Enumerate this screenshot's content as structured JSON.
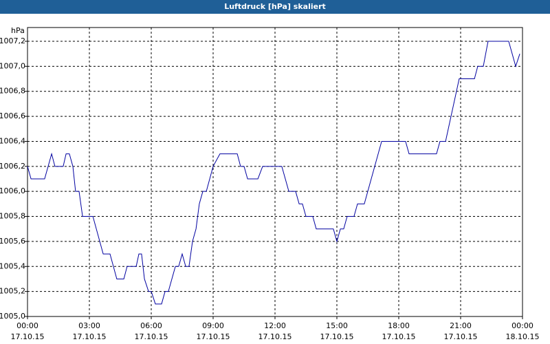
{
  "chart_data": {
    "type": "line",
    "title": "Luftdruck [hPa] skaliert",
    "ylabel": "hPa",
    "x": [
      0,
      0.17,
      0.83,
      1.17,
      1.33,
      1.73,
      1.87,
      2.03,
      2.2,
      2.33,
      2.5,
      2.67,
      3.17,
      3.67,
      4,
      4.33,
      4.67,
      4.83,
      5.27,
      5.4,
      5.53,
      5.67,
      5.87,
      6,
      6.2,
      6.5,
      6.67,
      6.83,
      7.17,
      7.33,
      7.5,
      7.67,
      7.83,
      8,
      8.17,
      8.33,
      8.5,
      8.67,
      9,
      9.33,
      10.17,
      10.33,
      10.5,
      10.67,
      11.17,
      11.4,
      12.33,
      12.67,
      13,
      13.17,
      13.33,
      13.5,
      13.83,
      14,
      14.83,
      15,
      15.17,
      15.33,
      15.5,
      15.83,
      16,
      16.33,
      17.17,
      18.33,
      18.5,
      19.83,
      20,
      20.27,
      20.93,
      21.67,
      21.83,
      22.1,
      22.33,
      23.33,
      23.67,
      23.87
    ],
    "series": [
      {
        "color": "#0000a0",
        "values": [
          1006.2,
          1006.1,
          1006.1,
          1006.3,
          1006.2,
          1006.2,
          1006.3,
          1006.3,
          1006.2,
          1006.0,
          1006.0,
          1005.8,
          1005.8,
          1005.5,
          1005.5,
          1005.3,
          1005.3,
          1005.4,
          1005.4,
          1005.5,
          1005.5,
          1005.3,
          1005.2,
          1005.2,
          1005.1,
          1005.1,
          1005.2,
          1005.2,
          1005.4,
          1005.4,
          1005.5,
          1005.4,
          1005.4,
          1005.6,
          1005.7,
          1005.9,
          1006.0,
          1006.0,
          1006.2,
          1006.3,
          1006.3,
          1006.2,
          1006.2,
          1006.1,
          1006.1,
          1006.2,
          1006.2,
          1006.0,
          1006.0,
          1005.9,
          1005.9,
          1005.8,
          1005.8,
          1005.7,
          1005.7,
          1005.6,
          1005.7,
          1005.7,
          1005.8,
          1005.8,
          1005.9,
          1005.9,
          1006.4,
          1006.4,
          1006.3,
          1006.3,
          1006.4,
          1006.4,
          1006.9,
          1006.9,
          1007.0,
          1007.0,
          1007.2,
          1007.2,
          1007.0,
          1007.1
        ]
      }
    ],
    "xlim": [
      0,
      24
    ],
    "xticks": [
      {
        "value": 0,
        "label": "00:00\n17.10.15"
      },
      {
        "value": 3,
        "label": "03:00\n17.10.15"
      },
      {
        "value": 6,
        "label": "06:00\n17.10.15"
      },
      {
        "value": 9,
        "label": "09:00\n17.10.15"
      },
      {
        "value": 12,
        "label": "12:00\n17.10.15"
      },
      {
        "value": 15,
        "label": "15:00\n17.10.15"
      },
      {
        "value": 18,
        "label": "18:00\n17.10.15"
      },
      {
        "value": 21,
        "label": "21:00\n17.10.15"
      },
      {
        "value": 24,
        "label": "00:00\n18.10.15"
      }
    ],
    "ylim": [
      1005.0,
      1007.2
    ],
    "yticks": [
      {
        "value": 1005.0,
        "label": "1005,0"
      },
      {
        "value": 1005.2,
        "label": "1005,2"
      },
      {
        "value": 1005.4,
        "label": "1005,4"
      },
      {
        "value": 1005.6,
        "label": "1005,6"
      },
      {
        "value": 1005.8,
        "label": "1005,8"
      },
      {
        "value": 1006.0,
        "label": "1006,0"
      },
      {
        "value": 1006.2,
        "label": "1006,2"
      },
      {
        "value": 1006.4,
        "label": "1006,4"
      },
      {
        "value": 1006.6,
        "label": "1006,6"
      },
      {
        "value": 1006.8,
        "label": "1006,8"
      },
      {
        "value": 1007.0,
        "label": "1007,0"
      },
      {
        "value": 1007.2,
        "label": "1007,2"
      }
    ],
    "grid": true
  }
}
